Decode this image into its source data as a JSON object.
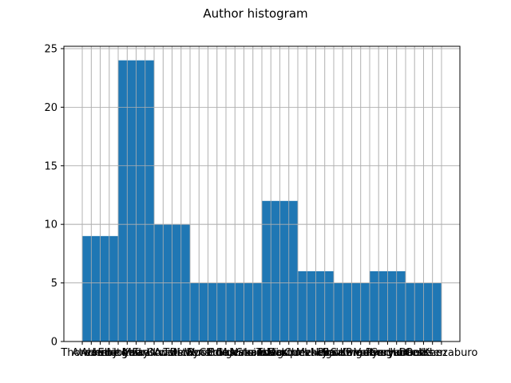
{
  "chart_data": {
    "type": "bar",
    "title": "Author histogram",
    "xlabel": "",
    "ylabel": "",
    "ylim": [
      0,
      25.2
    ],
    "yticks": [
      0,
      5,
      10,
      15,
      20,
      25
    ],
    "grid": true,
    "bar_color": "#1f77b4",
    "bins": [
      {
        "start": 0,
        "end": 4,
        "count": 9
      },
      {
        "start": 4,
        "end": 8,
        "count": 24
      },
      {
        "start": 8,
        "end": 12,
        "count": 10
      },
      {
        "start": 12,
        "end": 20,
        "count": 5
      },
      {
        "start": 20,
        "end": 24,
        "count": 12
      },
      {
        "start": 24,
        "end": 28,
        "count": 6
      },
      {
        "start": 28,
        "end": 32,
        "count": 5
      },
      {
        "start": 32,
        "end": 36,
        "count": 6
      },
      {
        "start": 36,
        "end": 40,
        "count": 5
      }
    ],
    "categories": [
      "Thoreau",
      "Atwood",
      "Achebe",
      "Eliot",
      "Hemingway",
      "Joyce",
      "Kafka",
      "Morrison",
      "Faulkner",
      "Orwell",
      "Austen",
      "Tolstoy",
      "Dickens",
      "Woolf",
      "Rushdie",
      "Camus",
      "Borges",
      "Calvino",
      "Murakami",
      "Nabokov",
      "Steinbeck",
      "Twain",
      "Ishiguro",
      "Marquez",
      "Dostoevsky",
      "Chekhov",
      "Melville",
      "Hugo",
      "Proust",
      "Baldwin",
      "Salinger",
      "Kerouac",
      "Bradbury",
      "Vonnegut",
      "Pynchon",
      "Cervantes",
      "Homer",
      "Dante",
      "Goethe",
      "Ibsen",
      "Oe Kenzaburo"
    ]
  }
}
